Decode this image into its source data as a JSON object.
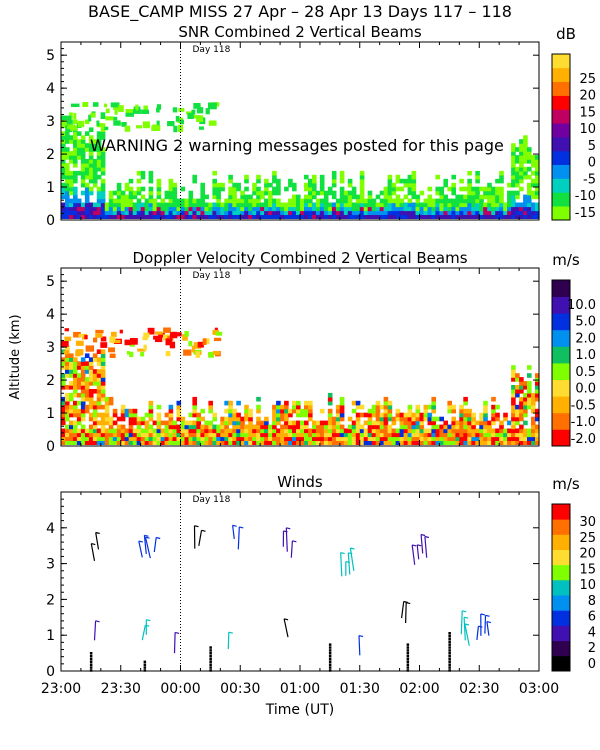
{
  "header": {
    "title": "BASE_CAMP MISS  27 Apr – 28 Apr 13 Days 117 – 118",
    "warning": "WARNING  2 warning messages posted for this page"
  },
  "chart_data": [
    {
      "type": "heatmap",
      "title": "SNR Combined 2 Vertical Beams",
      "day_marker": "Day 118",
      "ylabel": "",
      "yticks": [
        "0",
        "1",
        "2",
        "3",
        "4",
        "5"
      ],
      "ylim": [
        0,
        5.4
      ],
      "colorbar": {
        "unit": "dB",
        "labels": [
          "-15",
          "-10",
          "-5",
          "0",
          "5",
          "10",
          "15",
          "20",
          "25"
        ],
        "colors": [
          "#80ff00",
          "#10e040",
          "#00d0c0",
          "#0090f0",
          "#0030e0",
          "#4010b0",
          "#7000a0",
          "#c00060",
          "#ff0000",
          "#ff7000",
          "#ffb000",
          "#ffdc30"
        ]
      }
    },
    {
      "type": "heatmap",
      "title": "Doppler Velocity Combined 2 Vertical Beams",
      "day_marker": "Day 118",
      "ylabel": "Altitude (km)",
      "yticks": [
        "0",
        "1",
        "2",
        "3",
        "4",
        "5"
      ],
      "ylim": [
        0,
        5.4
      ],
      "colorbar": {
        "unit": "m/s",
        "labels": [
          "-2.0",
          "-1.0",
          "-0.5",
          "0.0",
          "0.5",
          "1.0",
          "2.0",
          "5.0",
          "10.0"
        ],
        "colors": [
          "#ff0000",
          "#ff7000",
          "#ffb000",
          "#ffdc30",
          "#80ff00",
          "#10c060",
          "#0090f0",
          "#0030e0",
          "#4010b0",
          "#300050"
        ]
      }
    },
    {
      "type": "scatter",
      "title": "Winds",
      "day_marker": "Day 118",
      "ylabel": "",
      "yticks": [
        "0",
        "1",
        "2",
        "3",
        "4"
      ],
      "ylim": [
        0,
        5
      ],
      "xlabel": "Time (UT)",
      "x_ticklabels": [
        "23:00",
        "23:30",
        "00:00",
        "00:30",
        "01:00",
        "01:30",
        "02:00",
        "02:30",
        "03:00"
      ],
      "colorbar": {
        "unit": "m/s",
        "labels": [
          "0",
          "2",
          "4",
          "6",
          "8",
          "10",
          "15",
          "20",
          "25",
          "30"
        ],
        "colors": [
          "#000000",
          "#300050",
          "#4010b0",
          "#0030e0",
          "#0090f0",
          "#00c0c0",
          "#80ff00",
          "#ffdc30",
          "#ffb000",
          "#ff7000",
          "#ff0000"
        ]
      }
    }
  ]
}
